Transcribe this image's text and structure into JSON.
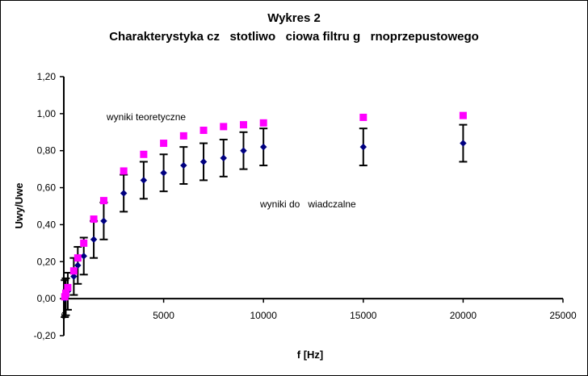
{
  "chart_data": {
    "type": "scatter",
    "title": "Wykres 2",
    "subtitle": "Charakterystyka cz   stotliwo   ciowa filtru g   rnoprzepustowego",
    "xlabel": "f [Hz]",
    "ylabel": "Uwy/Uwe",
    "xlim": [
      0,
      25000
    ],
    "ylim": [
      -0.2,
      1.2
    ],
    "x_ticks": [
      0,
      5000,
      10000,
      15000,
      20000,
      25000
    ],
    "y_ticks": [
      -0.2,
      0.0,
      0.2,
      0.4,
      0.6,
      0.8,
      1.0,
      1.2
    ],
    "y_tick_labels": [
      "-0,20",
      "0,00",
      "0,20",
      "0,40",
      "0,60",
      "0,80",
      "1,00",
      "1,20"
    ],
    "grid": false,
    "series": [
      {
        "name": "wyniki teoretyczne",
        "color": "#ff00ff",
        "marker": "square",
        "x": [
          50,
          100,
          200,
          500,
          700,
          1000,
          1500,
          2000,
          3000,
          4000,
          5000,
          6000,
          7000,
          8000,
          9000,
          10000,
          15000,
          20000
        ],
        "y": [
          0.01,
          0.03,
          0.06,
          0.15,
          0.22,
          0.3,
          0.43,
          0.53,
          0.69,
          0.78,
          0.84,
          0.88,
          0.91,
          0.93,
          0.94,
          0.95,
          0.98,
          0.99
        ]
      },
      {
        "name": "wyniki do   wiadczalne",
        "color": "#000080",
        "marker": "diamond",
        "error": 0.1,
        "x": [
          50,
          100,
          200,
          500,
          700,
          1000,
          1500,
          2000,
          3000,
          4000,
          5000,
          6000,
          7000,
          8000,
          9000,
          10000,
          15000,
          20000
        ],
        "y": [
          0.0,
          0.01,
          0.04,
          0.12,
          0.18,
          0.23,
          0.32,
          0.42,
          0.57,
          0.64,
          0.68,
          0.72,
          0.74,
          0.76,
          0.8,
          0.82,
          0.82,
          0.84
        ]
      }
    ]
  },
  "annotations": {
    "theoretical": "wyniki teoretyczne",
    "experimental": "wyniki do   wiadczalne"
  },
  "x_tick_labels": [
    "0",
    "5000",
    "10000",
    "15000",
    "20000",
    "25000"
  ]
}
